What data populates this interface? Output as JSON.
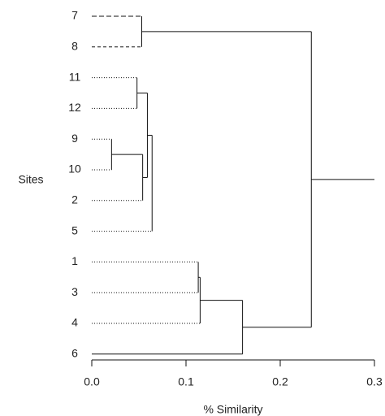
{
  "chart_data": {
    "type": "dendrogram",
    "y_label": "Sites",
    "x_label": "% Similarity",
    "leaves": [
      "7",
      "8",
      "11",
      "12",
      "9",
      "10",
      "2",
      "5",
      "1",
      "3",
      "4",
      "6"
    ],
    "leaf_styles": [
      "6 3",
      "4 3",
      "1 2",
      "1 2",
      "1 2",
      "1 2",
      "1 2",
      "1 2",
      "1 2",
      "1 2",
      "1 2",
      "none"
    ],
    "merges": [
      {
        "children": [
          0,
          1
        ],
        "height": 0.053
      },
      {
        "children": [
          2,
          3
        ],
        "height": 0.048
      },
      {
        "children": [
          4,
          5
        ],
        "height": 0.021
      },
      {
        "children": [
          14,
          6
        ],
        "height": 0.054
      },
      {
        "children": [
          13,
          15
        ],
        "height": 0.059
      },
      {
        "children": [
          16,
          7
        ],
        "height": 0.064
      },
      {
        "children": [
          8,
          9
        ],
        "height": 0.113
      },
      {
        "children": [
          18,
          10
        ],
        "height": 0.115
      },
      {
        "children": [
          19,
          11
        ],
        "height": 0.16
      },
      {
        "children": [
          12,
          20
        ],
        "height": 0.233
      }
    ],
    "xlim": [
      0,
      0.3
    ],
    "xticks": [
      {
        "value": 0,
        "label": "0.0"
      },
      0.1,
      0.2,
      0.3
    ]
  }
}
